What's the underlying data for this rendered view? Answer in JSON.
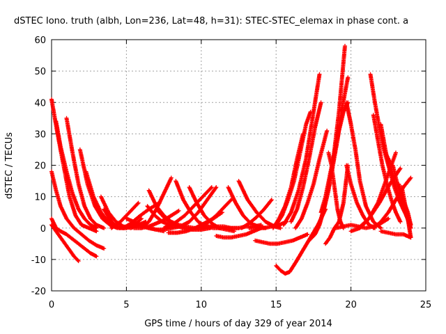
{
  "chart_data": {
    "type": "scatter",
    "title": "dSTEC Iono. truth (albh, Lon=236, Lat=48, h=31): STEC-STEC_elemax in phase cont. a",
    "xlabel": "GPS time / hours of day 329 of year 2014",
    "ylabel": "dSTEC  / TECUs",
    "xlim": [
      0,
      25
    ],
    "ylim": [
      -20,
      60
    ],
    "xticks": [
      0,
      5,
      10,
      15,
      20,
      25
    ],
    "yticks": [
      -20,
      -10,
      0,
      10,
      20,
      30,
      40,
      50,
      60
    ],
    "xtick_labels": [
      "0",
      "5",
      "10",
      "15",
      "20",
      "25"
    ],
    "ytick_labels": [
      "-20",
      "-10",
      "0",
      "10",
      "20",
      "30",
      "40",
      "50",
      "60"
    ],
    "grid": true,
    "marker": "plus",
    "color": "#ff0000",
    "arcs": [
      {
        "x": [
          0.0,
          0.4,
          0.8,
          1.2,
          1.6,
          2.0,
          2.5,
          3.0
        ],
        "y": [
          41,
          30,
          20,
          10,
          4,
          1,
          0,
          -1
        ]
      },
      {
        "x": [
          0.0,
          0.3,
          0.6,
          1.0,
          1.5,
          2.0,
          2.5,
          3.0,
          3.5
        ],
        "y": [
          18,
          12,
          7,
          3,
          0,
          -2,
          -4,
          -5.5,
          -6.5
        ]
      },
      {
        "x": [
          0.0,
          0.3,
          0.6,
          0.9,
          1.2,
          1.5,
          1.8
        ],
        "y": [
          1,
          -1,
          -3,
          -5,
          -7,
          -9,
          -10.5
        ]
      },
      {
        "x": [
          0.0,
          0.3,
          0.6,
          1.0,
          1.4,
          1.8,
          2.2,
          2.6,
          3.0
        ],
        "y": [
          3,
          0,
          -1,
          -2,
          -3.5,
          -5,
          -6.5,
          -8,
          -9
        ]
      },
      {
        "x": [
          0.3,
          0.6,
          1.0,
          1.4,
          1.8,
          2.2,
          2.6,
          3.0
        ],
        "y": [
          34,
          26,
          18,
          11,
          6,
          3,
          1,
          0
        ]
      },
      {
        "x": [
          1.0,
          1.4,
          1.8,
          2.2,
          2.6,
          3.0,
          3.5
        ],
        "y": [
          35,
          24,
          14,
          7,
          3,
          1,
          0
        ]
      },
      {
        "x": [
          1.9,
          2.4,
          2.9,
          3.4,
          3.9,
          4.4
        ],
        "y": [
          25,
          14,
          7,
          3,
          1,
          0
        ]
      },
      {
        "x": [
          2.3,
          2.8,
          3.3,
          3.8,
          4.3,
          4.8,
          5.3
        ],
        "y": [
          18,
          10,
          5,
          2,
          0.5,
          0,
          0.5
        ]
      },
      {
        "x": [
          3.3,
          3.8,
          4.3,
          4.8,
          5.3,
          5.8,
          6.3
        ],
        "y": [
          10,
          5,
          2,
          0.5,
          0,
          1,
          2
        ]
      },
      {
        "x": [
          3.5,
          4.0,
          4.5,
          5.0,
          5.5,
          6.0
        ],
        "y": [
          6,
          2,
          0,
          0,
          1,
          3
        ]
      },
      {
        "x": [
          3.8,
          4.3,
          4.8,
          5.3,
          5.8,
          6.5,
          7.2
        ],
        "y": [
          3,
          0.5,
          0,
          1.5,
          3.5,
          6,
          8
        ]
      },
      {
        "x": [
          4.0,
          4.6,
          5.2,
          5.8
        ],
        "y": [
          0,
          2,
          5,
          8
        ]
      },
      {
        "x": [
          4.5,
          5.0,
          5.5,
          6.0,
          6.5,
          7.0,
          7.5
        ],
        "y": [
          0,
          0.5,
          1,
          0.5,
          0,
          -0.5,
          -1
        ]
      },
      {
        "x": [
          5.0,
          5.5,
          6.0,
          6.5,
          7.0,
          7.5,
          8.0
        ],
        "y": [
          3,
          2,
          1,
          0,
          -0.5,
          -0.5,
          0
        ]
      },
      {
        "x": [
          5.5,
          6.0,
          6.5,
          7.0,
          7.5,
          8.0,
          8.5
        ],
        "y": [
          0,
          0,
          0.5,
          1.5,
          2.5,
          4,
          5.5
        ]
      },
      {
        "x": [
          6.4,
          6.9,
          7.4,
          7.9,
          8.4,
          8.9
        ],
        "y": [
          7,
          4,
          2,
          1,
          0.5,
          0.5
        ]
      },
      {
        "x": [
          6.0,
          6.5,
          7.0,
          7.5,
          8.0
        ],
        "y": [
          0,
          2,
          6,
          11,
          16
        ]
      },
      {
        "x": [
          6.5,
          7.0,
          7.5,
          8.0,
          8.5,
          9.0,
          9.5
        ],
        "y": [
          12,
          7,
          4,
          2,
          1,
          0.5,
          0
        ]
      },
      {
        "x": [
          7.0,
          7.6,
          8.2,
          8.8,
          9.4,
          10.0,
          10.6
        ],
        "y": [
          6,
          3,
          1,
          0,
          -0.5,
          -0.5,
          0
        ]
      },
      {
        "x": [
          7.5,
          8.2,
          8.9,
          9.5,
          10.1,
          10.7
        ],
        "y": [
          0,
          1.5,
          4,
          7,
          10,
          13
        ]
      },
      {
        "x": [
          7.8,
          8.4,
          9.0,
          9.6,
          10.2,
          10.8,
          11.4
        ],
        "y": [
          -1.5,
          -1.5,
          -1,
          0,
          1.5,
          3,
          5
        ]
      },
      {
        "x": [
          8.0,
          8.6,
          9.2,
          9.8,
          10.4,
          11.0
        ],
        "y": [
          0,
          0.5,
          2,
          5,
          9,
          13
        ]
      },
      {
        "x": [
          8.3,
          8.8,
          9.3,
          9.8,
          10.3,
          10.8,
          11.3
        ],
        "y": [
          15,
          9,
          5,
          2,
          0.5,
          0,
          0
        ]
      },
      {
        "x": [
          9.2,
          9.7,
          10.2,
          10.7,
          11.2,
          11.7,
          12.2
        ],
        "y": [
          13,
          8,
          4,
          1.5,
          0,
          -0.5,
          -1
        ]
      },
      {
        "x": [
          9.5,
          10.0,
          10.5,
          11.0,
          11.5,
          12.0,
          12.5
        ],
        "y": [
          0,
          0,
          0.5,
          0.5,
          0.5,
          0,
          0
        ]
      },
      {
        "x": [
          10.0,
          10.5,
          11.0,
          11.5,
          12.0
        ],
        "y": [
          0,
          2,
          4,
          6.5,
          9
        ]
      },
      {
        "x": [
          11.0,
          11.5,
          12.0,
          12.5,
          13.0,
          13.5,
          14.0
        ],
        "y": [
          -2.5,
          -3,
          -3,
          -2.5,
          -2,
          -1,
          0
        ]
      },
      {
        "x": [
          11.5,
          12.0,
          12.5,
          13.0,
          13.5,
          14.0
        ],
        "y": [
          0,
          0,
          0,
          0.5,
          0.5,
          1
        ]
      },
      {
        "x": [
          11.8,
          12.3,
          12.8,
          13.3,
          13.8,
          14.3
        ],
        "y": [
          13,
          8,
          4,
          1.5,
          0.5,
          0
        ]
      },
      {
        "x": [
          12.5,
          13.1,
          13.7,
          14.3,
          14.9,
          15.3
        ],
        "y": [
          15,
          9,
          5,
          2,
          0.5,
          0
        ]
      },
      {
        "x": [
          12.7,
          13.2,
          13.7,
          14.2,
          14.7
        ],
        "y": [
          0,
          1.5,
          3.5,
          6,
          9
        ]
      },
      {
        "x": [
          13.2,
          13.7,
          14.2,
          14.7,
          15.2,
          15.7
        ],
        "y": [
          0,
          0,
          0,
          0.5,
          1,
          2
        ]
      },
      {
        "x": [
          13.6,
          14.1,
          14.6,
          15.1,
          15.6,
          16.1,
          16.6,
          17.1
        ],
        "y": [
          -4,
          -4.5,
          -5,
          -5,
          -4.5,
          -4,
          -3,
          -2
        ]
      },
      {
        "x": [
          15.0,
          15.3,
          15.6,
          15.9,
          16.3,
          16.8,
          17.3,
          17.8,
          18.3
        ],
        "y": [
          -12,
          -13.5,
          -14.5,
          -14,
          -11,
          -7,
          -3,
          1,
          6
        ]
      },
      {
        "x": [
          14.8,
          15.2,
          15.6,
          16.0,
          16.4,
          16.8
        ],
        "y": [
          0,
          3,
          7,
          13,
          22,
          30
        ]
      },
      {
        "x": [
          15.0,
          15.4,
          15.8,
          16.2,
          16.6,
          17.0,
          17.3
        ],
        "y": [
          1,
          4,
          9,
          15,
          24,
          33,
          37
        ]
      },
      {
        "x": [
          15.5,
          16.0,
          16.5,
          17.0,
          17.5,
          17.9
        ],
        "y": [
          1,
          5,
          12,
          22,
          37,
          49
        ]
      },
      {
        "x": [
          16.0,
          16.4,
          16.8,
          17.2,
          17.6,
          18.0
        ],
        "y": [
          2,
          6,
          13,
          22,
          32,
          40
        ]
      },
      {
        "x": [
          16.3,
          16.7,
          17.1,
          17.5,
          17.9,
          18.4
        ],
        "y": [
          0,
          3,
          8,
          14,
          22,
          31
        ]
      },
      {
        "x": [
          17.2,
          17.6,
          18.0,
          18.4,
          18.8,
          19.2,
          19.6
        ],
        "y": [
          -4,
          -2,
          3,
          10,
          21,
          37,
          58
        ]
      },
      {
        "x": [
          17.6,
          17.9,
          18.2,
          18.5,
          18.8,
          19.1,
          19.4,
          19.8
        ],
        "y": [
          -2,
          1,
          6,
          12,
          20,
          28,
          38,
          48
        ]
      },
      {
        "x": [
          18.0,
          18.3,
          18.6,
          18.9,
          19.2,
          19.5,
          19.8
        ],
        "y": [
          5,
          10,
          17,
          24,
          31,
          37,
          40
        ]
      },
      {
        "x": [
          18.3,
          18.6,
          18.9,
          19.2,
          19.5,
          19.8
        ],
        "y": [
          -5,
          -3,
          0,
          2,
          8,
          20
        ]
      },
      {
        "x": [
          18.5,
          18.7,
          18.9,
          19.1,
          19.3,
          19.5
        ],
        "y": [
          24,
          20,
          13,
          6,
          2,
          0
        ]
      },
      {
        "x": [
          19.7,
          20.0,
          20.3,
          20.6,
          21.0,
          21.5,
          22.0
        ],
        "y": [
          40,
          33,
          25,
          15,
          7,
          2,
          0
        ]
      },
      {
        "x": [
          19.7,
          20.0,
          20.4,
          20.8,
          21.2,
          21.6
        ],
        "y": [
          20,
          14,
          8,
          4,
          1,
          0
        ]
      },
      {
        "x": [
          19.0,
          19.5,
          20.0,
          20.5,
          21.0,
          21.5,
          22.0,
          22.5
        ],
        "y": [
          0,
          0.5,
          1,
          0.5,
          0,
          0.5,
          1.5,
          3
        ]
      },
      {
        "x": [
          21.3,
          21.6,
          21.9,
          22.2,
          22.5,
          22.8
        ],
        "y": [
          49,
          40,
          32,
          25,
          20,
          16
        ]
      },
      {
        "x": [
          21.5,
          21.8,
          22.1,
          22.4,
          22.7,
          23.0,
          23.3
        ],
        "y": [
          36,
          28,
          20,
          14,
          9,
          5,
          2
        ]
      },
      {
        "x": [
          22.0,
          22.3,
          22.6,
          22.9,
          23.2,
          23.5,
          23.8,
          24.0
        ],
        "y": [
          33,
          25,
          18,
          13,
          9,
          6,
          3,
          1
        ]
      },
      {
        "x": [
          22.3,
          22.6,
          22.9,
          23.2,
          23.5,
          23.8,
          24.0
        ],
        "y": [
          24,
          21,
          15,
          10,
          6,
          3,
          0
        ]
      },
      {
        "x": [
          22.8,
          23.1,
          23.4,
          23.7,
          24.0
        ],
        "y": [
          20,
          14,
          9,
          4,
          0
        ]
      },
      {
        "x": [
          23.2,
          23.5,
          23.8,
          24.0
        ],
        "y": [
          14,
          9,
          5,
          1
        ]
      },
      {
        "x": [
          23.4,
          23.6,
          23.8,
          24.0
        ],
        "y": [
          13,
          8,
          3,
          -3
        ]
      },
      {
        "x": [
          20.0,
          20.6,
          21.2,
          21.8,
          22.4,
          23.0
        ],
        "y": [
          -1,
          0,
          3,
          8,
          16,
          24
        ]
      },
      {
        "x": [
          20.5,
          21.2,
          21.9,
          22.6,
          23.3
        ],
        "y": [
          0,
          3,
          8,
          14,
          19
        ]
      },
      {
        "x": [
          21.5,
          22.0,
          22.5,
          23.0,
          23.5,
          24.0
        ],
        "y": [
          0,
          2,
          5,
          9,
          13,
          16
        ]
      },
      {
        "x": [
          22.0,
          22.5,
          23.0,
          23.5,
          24.0
        ],
        "y": [
          -1,
          -1.5,
          -2,
          -2,
          -3
        ]
      }
    ]
  }
}
